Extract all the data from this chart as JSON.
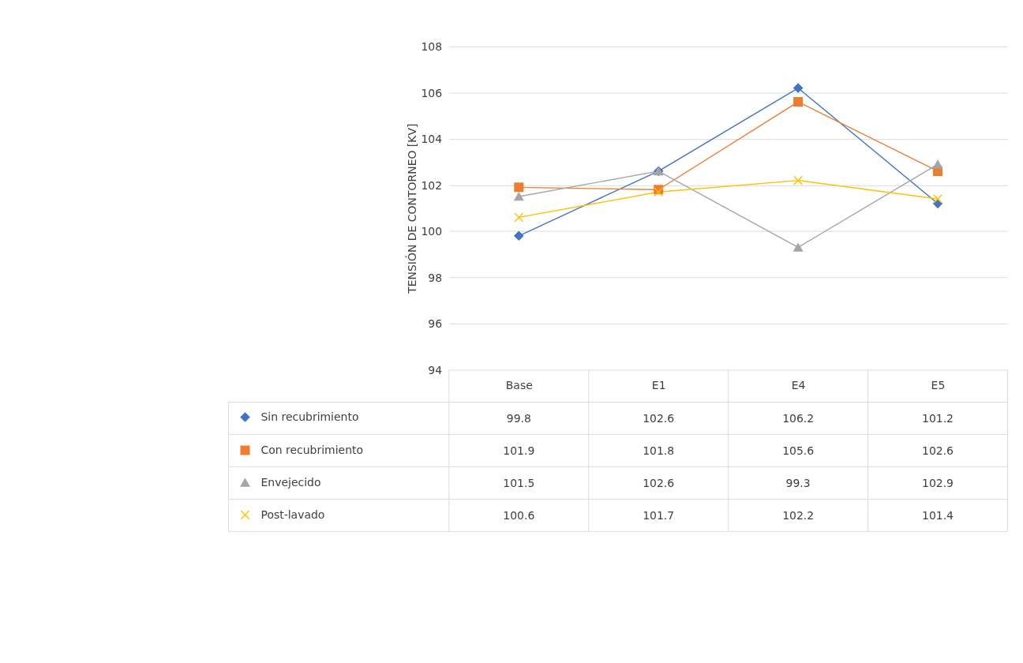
{
  "chart_data": {
    "type": "line",
    "ylabel": "TENSIÓN DE CONTORNEO [KV]",
    "categories": [
      "Base",
      "E1",
      "E4",
      "E5"
    ],
    "series": [
      {
        "name": "Sin recubrimiento",
        "color": "#4472c4",
        "marker": "diamond",
        "values": [
          99.8,
          102.6,
          106.2,
          101.2
        ]
      },
      {
        "name": "Con recubrimiento",
        "color": "#ed7d31",
        "marker": "square",
        "values": [
          101.9,
          101.8,
          105.6,
          102.6
        ]
      },
      {
        "name": "Envejecido",
        "color": "#a5a5a5",
        "marker": "triangle",
        "values": [
          101.5,
          102.6,
          99.3,
          102.9
        ]
      },
      {
        "name": "Post-lavado",
        "color": "#ffc000",
        "marker": "cross",
        "values": [
          100.6,
          101.7,
          102.2,
          101.4
        ]
      }
    ],
    "ylim": [
      94,
      108
    ],
    "yticks": [
      94,
      96,
      98,
      100,
      102,
      104,
      106,
      108
    ],
    "grid": "y",
    "legend": "bottom",
    "data_labels": true
  }
}
